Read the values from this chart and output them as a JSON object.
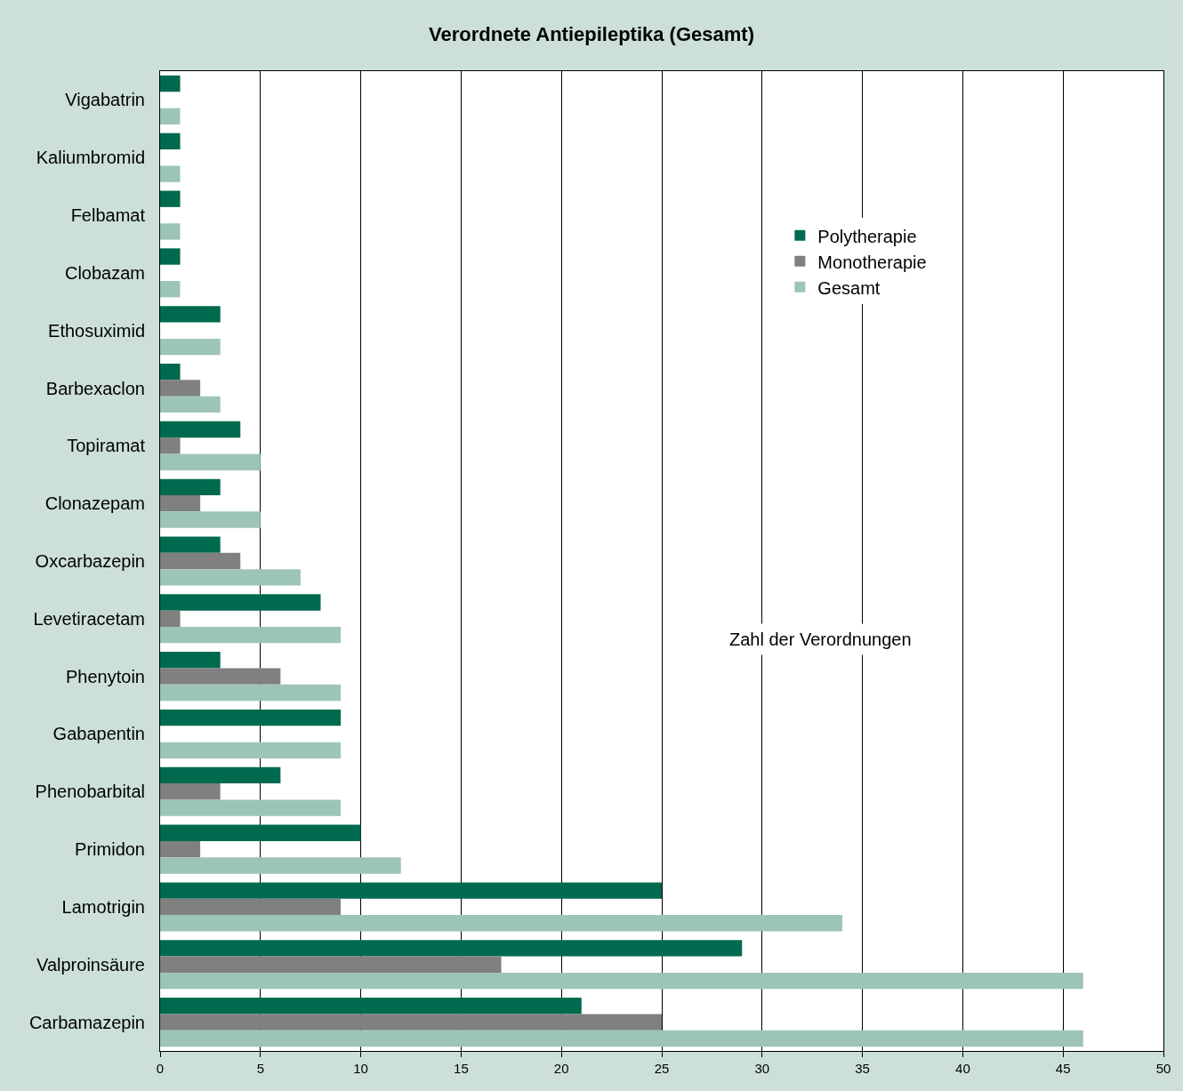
{
  "chart_data": {
    "type": "bar",
    "orientation": "horizontal",
    "title": "Verordnete Antiepileptika (Gesamt)",
    "xlabel": "Zahl der Verordnungen",
    "categories": [
      "Vigabatrin",
      "Kaliumbromid",
      "Felbamat",
      "Clobazam",
      "Ethosuximid",
      "Barbexaclon",
      "Topiramat",
      "Clonazepam",
      "Oxcarbazepin",
      "Levetiracetam",
      "Phenytoin",
      "Gabapentin",
      "Phenobarbital",
      "Primidon",
      "Lamotrigin",
      "Valproinsäure",
      "Carbamazepin"
    ],
    "series": [
      {
        "name": "Polytherapie",
        "color": "#006a4e",
        "values": [
          1,
          1,
          1,
          1,
          3,
          1,
          4,
          3,
          3,
          8,
          3,
          9,
          6,
          10,
          25,
          29,
          21
        ]
      },
      {
        "name": "Monotherapie",
        "color": "#808080",
        "values": [
          null,
          null,
          null,
          null,
          null,
          2,
          1,
          2,
          4,
          1,
          6,
          null,
          3,
          2,
          9,
          17,
          25
        ]
      },
      {
        "name": "Gesamt",
        "color": "#9cc5b8",
        "values": [
          1,
          1,
          1,
          1,
          3,
          3,
          5,
          5,
          7,
          9,
          9,
          9,
          9,
          12,
          34,
          46,
          46
        ]
      }
    ],
    "xlim": [
      0,
      50
    ],
    "xticks": [
      0,
      5,
      10,
      15,
      20,
      25,
      30,
      35,
      40,
      45,
      50
    ],
    "grid": "x",
    "legend": "top right"
  }
}
